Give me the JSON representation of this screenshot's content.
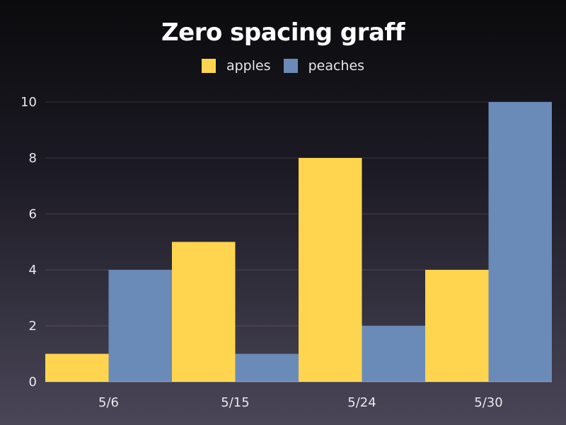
{
  "chart_data": {
    "type": "bar",
    "title": "Zero spacing graff",
    "categories": [
      "5/6",
      "5/15",
      "5/24",
      "5/30"
    ],
    "series": [
      {
        "name": "apples",
        "values": [
          1,
          5,
          8,
          4
        ],
        "color": "#ffd54f"
      },
      {
        "name": "peaches",
        "values": [
          4,
          1,
          2,
          10
        ],
        "color": "#6a8ab8"
      }
    ],
    "y_ticks": [
      "0",
      "2",
      "4",
      "6",
      "8",
      "10"
    ],
    "ylim": [
      0,
      10
    ],
    "grid": true,
    "legend_position": "top-center",
    "bar_spacing": "zero"
  }
}
